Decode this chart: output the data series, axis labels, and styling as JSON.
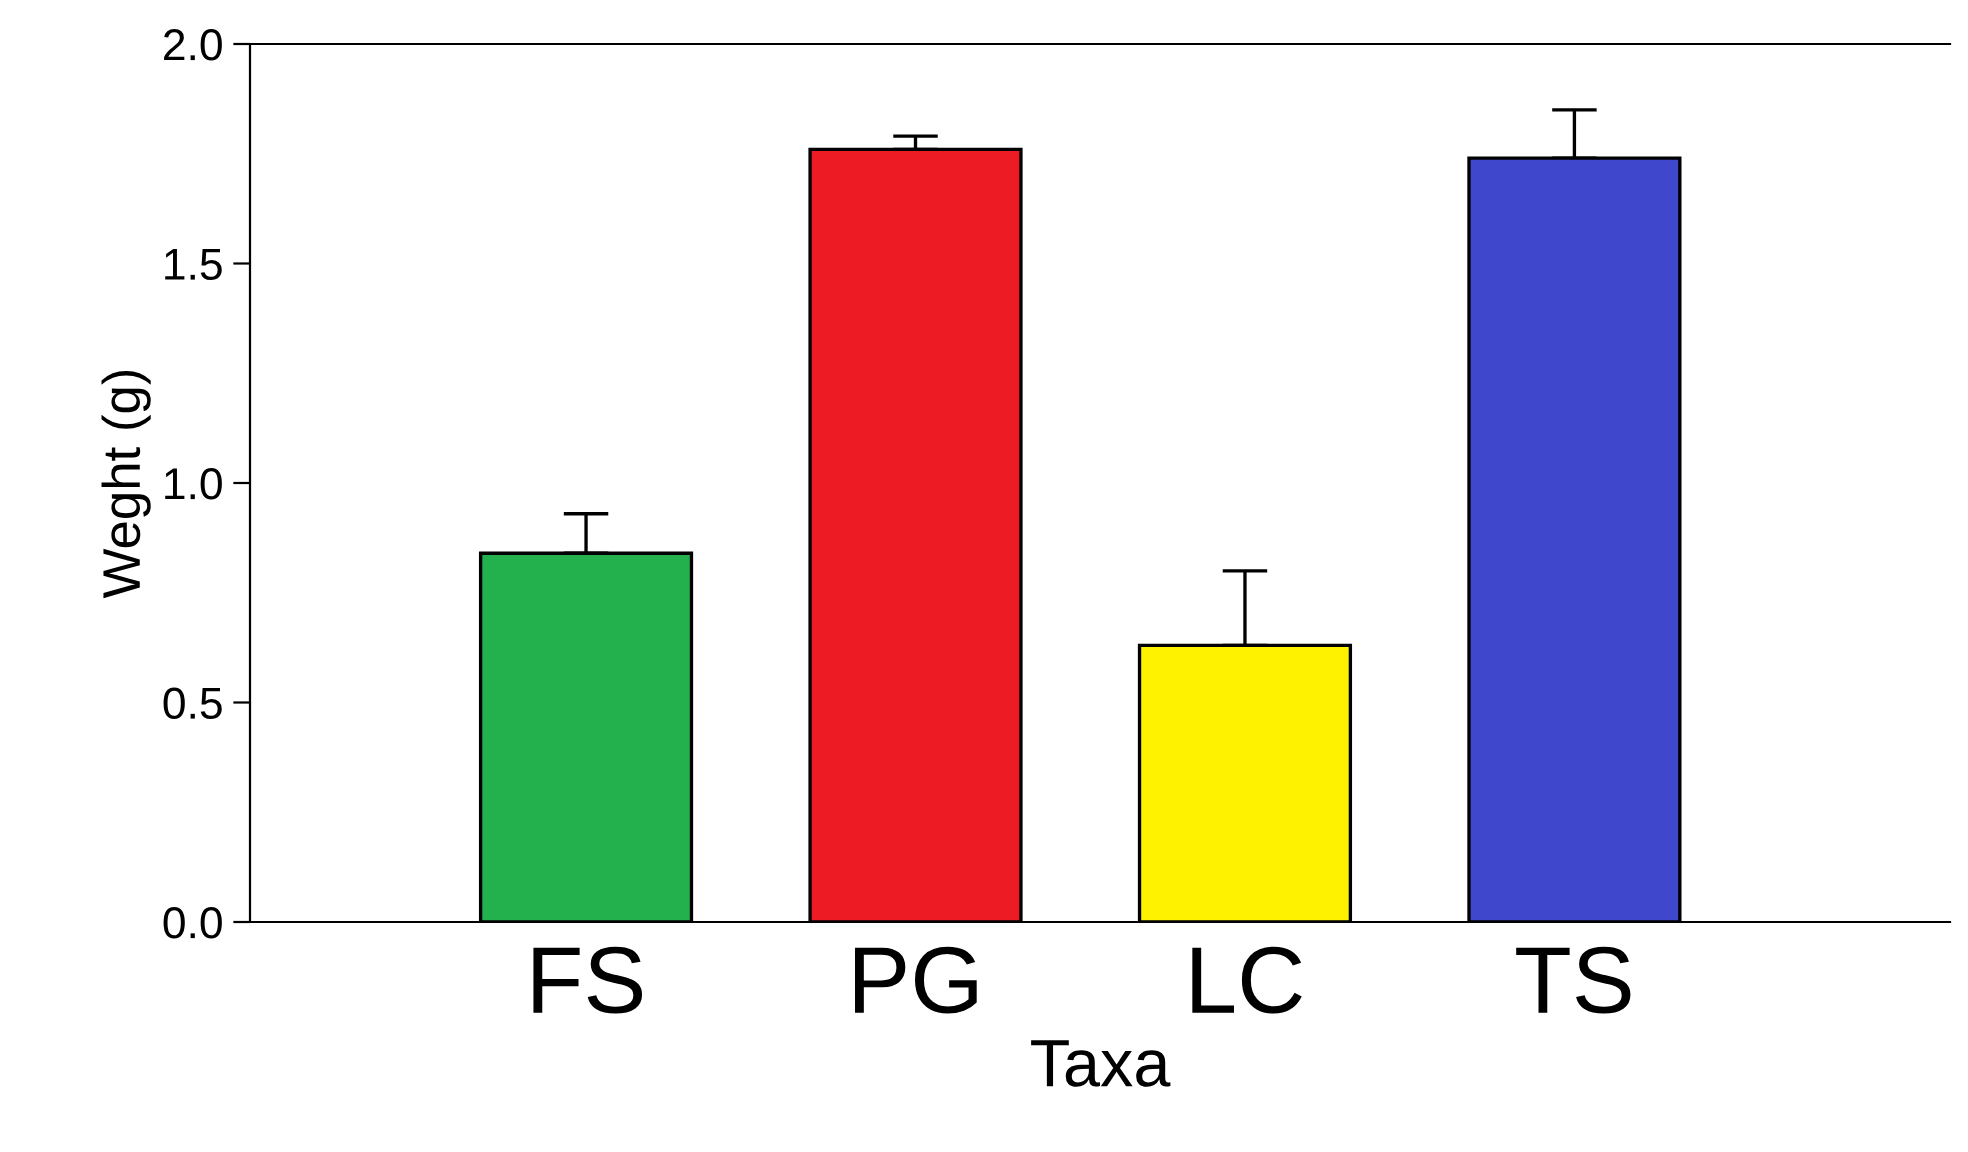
{
  "chart_data": {
    "type": "bar",
    "xlabel": "Taxa",
    "ylabel": "Weght (g)",
    "categories": [
      "FS",
      "PG",
      "LC",
      "TS"
    ],
    "values": [
      0.84,
      1.76,
      0.63,
      1.74
    ],
    "colors": [
      "#22b14c",
      "#ed1c24",
      "#fff200",
      "#3f48cc"
    ],
    "errors": [
      [
        0.84,
        0.93
      ],
      [
        1.76,
        1.79
      ],
      [
        0.63,
        0.8
      ],
      [
        1.74,
        1.85
      ]
    ],
    "ylim": [
      0,
      2.0
    ],
    "yticks": [
      {
        "value": 0,
        "label": "0.0"
      },
      {
        "value": 0.5,
        "label": "0.5"
      },
      {
        "value": 1,
        "label": "1.0"
      },
      {
        "value": 1.5,
        "label": "1.5"
      },
      {
        "value": 2,
        "label": "2.0"
      }
    ],
    "grid": false,
    "legend": false
  }
}
